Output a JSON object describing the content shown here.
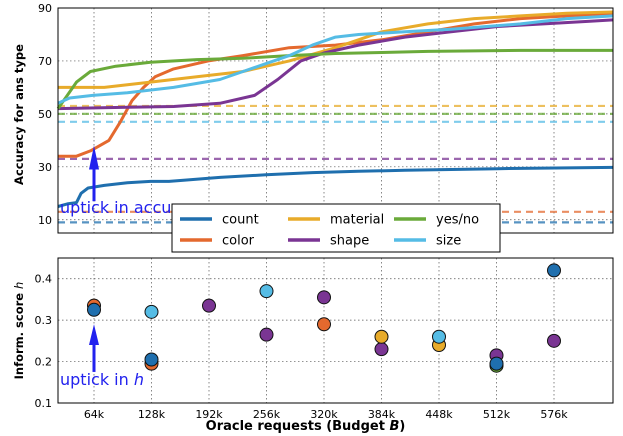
{
  "chart_data": [
    {
      "type": "line",
      "ylabel": "Accuracy for ans type",
      "ylim": [
        5,
        90
      ],
      "yticks": [
        10,
        30,
        50,
        70,
        90
      ],
      "grid": true,
      "legend_position": "bottom-center",
      "x_axis": "shared with the lower panel (no tick labels)",
      "series": [
        {
          "name": "count",
          "color": "#1f6fae",
          "curve": [
            [
              0,
              15
            ],
            [
              0.4,
              16
            ],
            [
              0.8,
              16.5
            ],
            [
              1.0,
              20
            ],
            [
              1.3,
              22
            ],
            [
              2,
              23
            ],
            [
              3,
              24
            ],
            [
              4,
              24.5
            ],
            [
              4.8,
              24.5
            ],
            [
              5.5,
              25
            ],
            [
              7,
              26
            ],
            [
              9,
              27
            ],
            [
              11,
              27.8
            ],
            [
              13,
              28.3
            ],
            [
              15,
              28.7
            ],
            [
              17,
              29
            ],
            [
              19,
              29.3
            ],
            [
              21,
              29.5
            ],
            [
              23,
              29.7
            ],
            [
              24,
              29.8
            ]
          ],
          "baseline": 9
        },
        {
          "name": "color",
          "color": "#e4692e",
          "curve": [
            [
              0,
              34
            ],
            [
              0.8,
              34
            ],
            [
              1.4,
              36
            ],
            [
              2.2,
              40
            ],
            [
              2.7,
              47
            ],
            [
              3.2,
              55
            ],
            [
              3.7,
              60
            ],
            [
              4.2,
              64
            ],
            [
              5,
              67
            ],
            [
              6.5,
              70
            ],
            [
              8,
              72
            ],
            [
              10,
              75
            ],
            [
              12,
              76
            ],
            [
              14,
              78
            ],
            [
              16,
              81
            ],
            [
              18,
              84
            ],
            [
              20,
              86
            ],
            [
              22,
              87
            ],
            [
              24,
              88
            ]
          ],
          "baseline": 13
        },
        {
          "name": "material",
          "color": "#e8ab2a",
          "curve": [
            [
              0,
              60
            ],
            [
              2,
              60
            ],
            [
              3,
              61
            ],
            [
              4,
              62
            ],
            [
              6,
              64
            ],
            [
              8,
              66
            ],
            [
              10,
              70
            ],
            [
              12,
              75
            ],
            [
              14,
              81
            ],
            [
              16,
              84
            ],
            [
              18,
              86
            ],
            [
              20,
              87
            ],
            [
              22,
              88
            ],
            [
              24,
              88.5
            ]
          ],
          "baseline": 53
        },
        {
          "name": "shape",
          "color": "#7a3593",
          "curve": [
            [
              0,
              52
            ],
            [
              3,
              52.5
            ],
            [
              5,
              52.8
            ],
            [
              7,
              54
            ],
            [
              8.5,
              57
            ],
            [
              9.5,
              63
            ],
            [
              10.5,
              70
            ],
            [
              11.5,
              73
            ],
            [
              13,
              76
            ],
            [
              15,
              79
            ],
            [
              17,
              81
            ],
            [
              19,
              83
            ],
            [
              21,
              84
            ],
            [
              23,
              85
            ],
            [
              24,
              85.5
            ]
          ],
          "baseline": 33
        },
        {
          "name": "yes/no",
          "color": "#6aaa3a",
          "curve": [
            [
              0,
              52
            ],
            [
              0.4,
              57
            ],
            [
              0.8,
              62
            ],
            [
              1.4,
              66
            ],
            [
              2.5,
              68
            ],
            [
              4,
              69.5
            ],
            [
              6,
              70.5
            ],
            [
              8,
              71
            ],
            [
              10,
              72
            ],
            [
              12,
              72.8
            ],
            [
              14,
              73.2
            ],
            [
              16,
              73.6
            ],
            [
              18,
              73.8
            ],
            [
              20,
              74
            ],
            [
              22,
              74
            ],
            [
              24,
              74
            ]
          ],
          "baseline": 50
        },
        {
          "name": "size",
          "color": "#55bce5",
          "curve": [
            [
              0,
              54
            ],
            [
              0.5,
              56
            ],
            [
              1.5,
              57
            ],
            [
              3,
              58
            ],
            [
              5,
              60
            ],
            [
              7,
              63
            ],
            [
              8,
              66
            ],
            [
              9,
              69
            ],
            [
              10,
              72
            ],
            [
              11,
              76
            ],
            [
              12,
              79
            ],
            [
              13,
              80
            ],
            [
              15,
              81
            ],
            [
              17,
              82
            ],
            [
              20,
              84
            ],
            [
              22,
              86
            ],
            [
              24,
              87
            ]
          ],
          "baseline": 47
        }
      ],
      "annotations": [
        {
          "text": "uptick in accuracy",
          "arrow_x_budget": "64k"
        }
      ]
    },
    {
      "type": "scatter",
      "xlabel": "Oracle requests (Budget B)",
      "ylabel": "Inform. score h",
      "categories": [
        "64k",
        "128k",
        "192k",
        "256k",
        "320k",
        "384k",
        "448k",
        "512k",
        "576k"
      ],
      "ylim": [
        0.1,
        0.45
      ],
      "yticks": [
        "0.1",
        "0.2",
        "0.3",
        "0.4"
      ],
      "grid": true,
      "series": [
        {
          "name": "count",
          "color": "#1f6fae",
          "values": [
            0.325,
            0.205,
            null,
            null,
            null,
            null,
            null,
            0.195,
            0.42
          ]
        },
        {
          "name": "color",
          "color": "#e4692e",
          "values": [
            0.335,
            0.195,
            null,
            null,
            0.29,
            null,
            null,
            null,
            null
          ]
        },
        {
          "name": "material",
          "color": "#e8ab2a",
          "values": [
            null,
            null,
            null,
            null,
            null,
            0.26,
            0.24,
            null,
            null
          ]
        },
        {
          "name": "shape",
          "color": "#7a3593",
          "values": [
            null,
            null,
            0.335,
            0.265,
            0.355,
            0.23,
            null,
            0.215,
            0.25
          ]
        },
        {
          "name": "yes/no",
          "color": "#6aaa3a",
          "values": [
            null,
            null,
            null,
            null,
            null,
            null,
            null,
            0.19,
            null
          ]
        },
        {
          "name": "size",
          "color": "#55bce5",
          "values": [
            null,
            0.32,
            null,
            0.37,
            null,
            null,
            0.26,
            null,
            null
          ]
        }
      ],
      "annotations": [
        {
          "text_prefix": "uptick in ",
          "text_var": "h",
          "arrow_x_budget": "64k"
        }
      ]
    }
  ],
  "legend": {
    "entries": [
      {
        "name": "count",
        "color": "#1f6fae"
      },
      {
        "name": "material",
        "color": "#e8ab2a"
      },
      {
        "name": "yes/no",
        "color": "#6aaa3a"
      },
      {
        "name": "color",
        "color": "#e4692e"
      },
      {
        "name": "shape",
        "color": "#7a3593"
      },
      {
        "name": "size",
        "color": "#55bce5"
      }
    ]
  },
  "axis_labels": {
    "top_ylabel": "Accuracy for ans type",
    "bottom_ylabel_prefix": "Inform. score ",
    "bottom_ylabel_var": "h",
    "xlabel_prefix": "Oracle requests (Budget ",
    "xlabel_var": "B",
    "xlabel_suffix": ")"
  },
  "annotations_text": {
    "top": "uptick in accuracy",
    "bottom_prefix": "uptick in ",
    "bottom_var": "h"
  },
  "annotation_color": "#2222ee"
}
